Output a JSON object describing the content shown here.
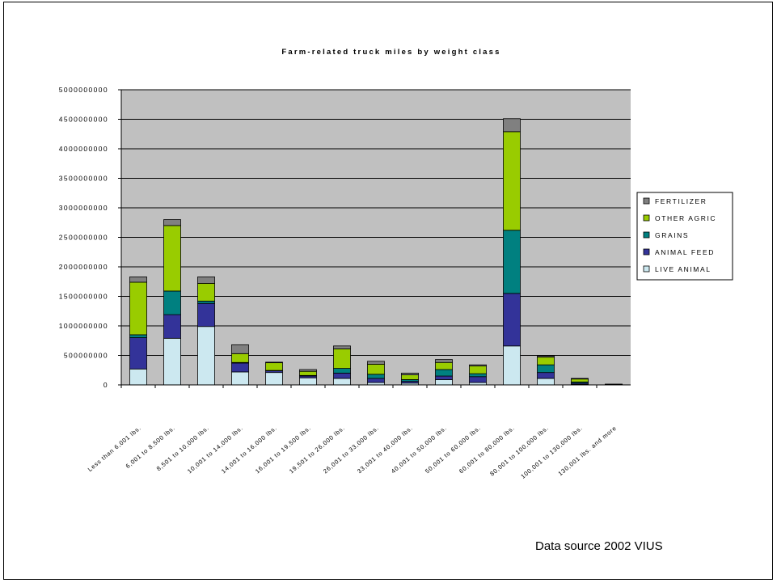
{
  "chart_data": {
    "type": "bar",
    "stacked": true,
    "title": "Farm-related truck miles by weight class",
    "xlabel": "",
    "ylabel": "",
    "ylim": [
      0,
      5000000000
    ],
    "ytick_step": 500000000,
    "yticks": [
      "5000000000",
      "4500000000",
      "4000000000",
      "3500000000",
      "3000000000",
      "2500000000",
      "2000000000",
      "1500000000",
      "1000000000",
      "500000000",
      "0"
    ],
    "grid": true,
    "legend_position": "right",
    "plot_background": "#c0c0c0",
    "categories": [
      "Less than 6,001 lbs.",
      "6,001 to 8,500 lbs.",
      "8,501 to 10,000 lbs.",
      "10,001 to 14,000 lbs.",
      "14,001 to 16,000 lbs.",
      "16,001 to 19,500 lbs.",
      "19,501 to 26,000 lbs.",
      "26,001 to 33,000 lbs.",
      "33,001 to 40,000 lbs.",
      "40,001 to 50,000 lbs.",
      "50,001 to 60,000 lbs.",
      "60,001 to 80,000 lbs.",
      "80,001 to 100,000 lbs.",
      "100,001 to 130,000 lbs.",
      "130,001 lbs. and more"
    ],
    "series": [
      {
        "name": "LIVE ANIMAL",
        "color": "#cce8f0",
        "values": [
          270000000,
          790000000,
          990000000,
          220000000,
          210000000,
          120000000,
          110000000,
          40000000,
          30000000,
          90000000,
          40000000,
          660000000,
          110000000,
          10000000,
          2000000
        ]
      },
      {
        "name": "ANIMAL FEED",
        "color": "#333399",
        "values": [
          530000000,
          400000000,
          390000000,
          150000000,
          30000000,
          30000000,
          90000000,
          70000000,
          30000000,
          60000000,
          100000000,
          890000000,
          100000000,
          20000000,
          2000000
        ]
      },
      {
        "name": "GRAINS",
        "color": "#008080",
        "values": [
          50000000,
          400000000,
          40000000,
          10000000,
          5000000,
          10000000,
          80000000,
          70000000,
          30000000,
          110000000,
          50000000,
          1070000000,
          130000000,
          20000000,
          2000000
        ]
      },
      {
        "name": "OTHER AGRIC",
        "color": "#99cc00",
        "values": [
          890000000,
          1110000000,
          300000000,
          150000000,
          130000000,
          70000000,
          330000000,
          170000000,
          80000000,
          120000000,
          130000000,
          1670000000,
          130000000,
          50000000,
          5000000
        ]
      },
      {
        "name": "FERTILIZER",
        "color": "#808080",
        "values": [
          90000000,
          100000000,
          110000000,
          150000000,
          10000000,
          30000000,
          50000000,
          50000000,
          30000000,
          50000000,
          20000000,
          220000000,
          20000000,
          10000000,
          2000000
        ]
      }
    ]
  },
  "footer": {
    "source_text": "Data source 2002 VIUS"
  }
}
